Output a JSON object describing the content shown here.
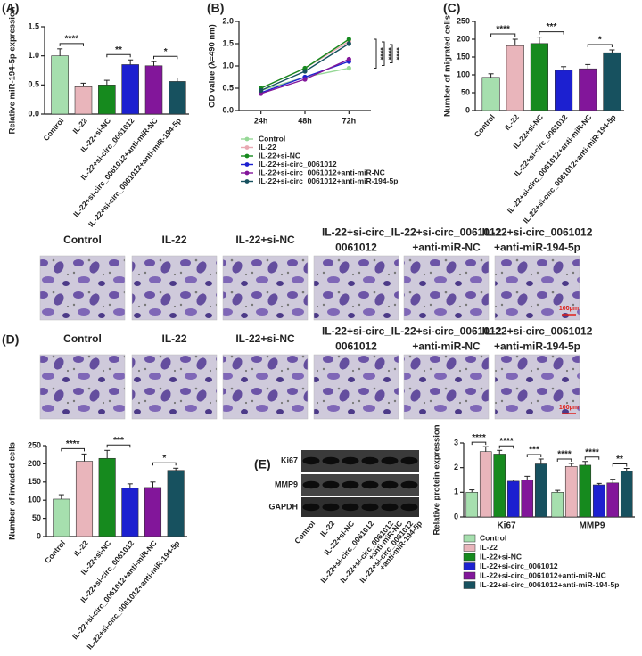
{
  "panel_labels": [
    "(A)",
    "(B)",
    "(C)",
    "(D)",
    "(E)"
  ],
  "chart_data": [
    {
      "type": "bar",
      "ylabel": "Relative miR-194-5p expression",
      "categories": [
        "Control",
        "IL-22",
        "IL-22+si-NC",
        "IL-22+si-circ_0061012",
        "IL-22+si-circ_0061012+anti-miR-NC",
        "IL-22+si-circ_0061012+anti-miR-194-5p"
      ],
      "values": [
        1.0,
        0.47,
        0.5,
        0.85,
        0.83,
        0.56
      ],
      "errors": [
        0.12,
        0.06,
        0.08,
        0.08,
        0.07,
        0.06
      ],
      "colors": [
        "#a6dfae",
        "#e9b5bb",
        "#168a1e",
        "#1c20d0",
        "#82169a",
        "#17515f"
      ],
      "ylim": [
        0,
        1.5
      ],
      "yticks": [
        {
          "value": 0,
          "label": "0.0"
        },
        0.5,
        {
          "value": 1,
          "label": "1.0"
        },
        1.5
      ],
      "annotations": [
        "****",
        "**",
        "*"
      ]
    },
    {
      "type": "line",
      "ylabel": "OD value (λ=490 nm)",
      "categories": [
        "24h",
        "48h",
        "72h"
      ],
      "series": [
        {
          "name": "Control",
          "color": "#96d896",
          "values": [
            0.45,
            0.75,
            0.95
          ]
        },
        {
          "name": "IL-22",
          "color": "#e9a8b2",
          "values": [
            0.5,
            0.95,
            1.55
          ]
        },
        {
          "name": "IL-22+si-NC",
          "color": "#168a1e",
          "values": [
            0.5,
            0.95,
            1.6
          ]
        },
        {
          "name": "IL-22+si-circ_0061012",
          "color": "#1c20d0",
          "values": [
            0.4,
            0.75,
            1.1
          ]
        },
        {
          "name": "IL-22+si-circ_0061012+anti-miR-NC",
          "color": "#82169a",
          "values": [
            0.38,
            0.7,
            1.15
          ]
        },
        {
          "name": "IL-22+si-circ_0061012+anti-miR-194-5p",
          "color": "#17515f",
          "values": [
            0.45,
            0.88,
            1.5
          ]
        }
      ],
      "ylim": [
        0,
        2
      ],
      "yticks": [
        {
          "value": 0,
          "label": "0.0"
        },
        0.5,
        {
          "value": 1,
          "label": "1.0"
        },
        1.5,
        {
          "value": 2,
          "label": "2.0"
        }
      ],
      "annotations": [
        "****",
        "****",
        "****"
      ]
    },
    {
      "type": "bar",
      "ylabel": "Number of migrated cells",
      "categories": [
        "Control",
        "IL-22",
        "IL-22+si-NC",
        "IL-22+si-circ_0061012",
        "IL-22+si-circ_0061012+anti-miR-NC",
        "IL-22+si-circ_0061012+anti-miR-194-5p"
      ],
      "values": [
        93,
        182,
        188,
        113,
        117,
        162
      ],
      "errors": [
        10,
        18,
        18,
        10,
        12,
        8
      ],
      "colors": [
        "#a6dfae",
        "#e9b5bb",
        "#168a1e",
        "#1c20d0",
        "#82169a",
        "#17515f"
      ],
      "ylim": [
        0,
        250
      ],
      "yticks": [
        0,
        50,
        100,
        150,
        200,
        250
      ],
      "annotations": [
        "****",
        "***",
        "*"
      ]
    },
    {
      "type": "bar",
      "ylabel": "Number of invaded cells",
      "categories": [
        "Control",
        "IL-22",
        "IL-22+si-NC",
        "IL-22+si-circ_0061012",
        "IL-22+si-circ_0061012+anti-miR-NC",
        "IL-22+si-circ_0061012+anti-miR-194-5p"
      ],
      "values": [
        103,
        207,
        215,
        133,
        135,
        182
      ],
      "errors": [
        12,
        20,
        22,
        12,
        15,
        6
      ],
      "colors": [
        "#a6dfae",
        "#e9b5bb",
        "#168a1e",
        "#1c20d0",
        "#82169a",
        "#17515f"
      ],
      "ylim": [
        0,
        250
      ],
      "yticks": [
        0,
        50,
        100,
        150,
        200,
        250
      ],
      "annotations": [
        "****",
        "***",
        "*"
      ]
    },
    {
      "type": "bar",
      "ylabel": "Relative protein expression",
      "categories": [
        "Ki67",
        "MMP9"
      ],
      "series": [
        {
          "name": "Control",
          "color": "#a6dfae",
          "values": [
            1.0,
            1.0
          ],
          "errors": [
            0.1,
            0.08
          ]
        },
        {
          "name": "IL-22",
          "color": "#e9b5bb",
          "values": [
            2.65,
            2.05
          ],
          "errors": [
            0.2,
            0.12
          ]
        },
        {
          "name": "IL-22+si-NC",
          "color": "#168a1e",
          "values": [
            2.55,
            2.1
          ],
          "errors": [
            0.15,
            0.15
          ]
        },
        {
          "name": "IL-22+si-circ_0061012",
          "color": "#1c20d0",
          "values": [
            1.45,
            1.3
          ],
          "errors": [
            0.05,
            0.06
          ]
        },
        {
          "name": "IL-22+si-circ_0061012+anti-miR-NC",
          "color": "#82169a",
          "values": [
            1.5,
            1.38
          ],
          "errors": [
            0.15,
            0.15
          ]
        },
        {
          "name": "IL-22+si-circ_0061012+anti-miR-194-5p",
          "color": "#17515f",
          "values": [
            2.15,
            1.85
          ],
          "errors": [
            0.2,
            0.12
          ]
        }
      ],
      "ylim": [
        0,
        3
      ],
      "yticks": [
        0,
        1,
        2,
        3
      ],
      "annotations": [
        "****",
        "****",
        "***",
        "****",
        "****",
        "**"
      ]
    }
  ],
  "migration_images": {
    "labels": [
      [
        "Control"
      ],
      [
        "IL-22"
      ],
      [
        "IL-22+si-NC"
      ],
      [
        "IL-22+si-circ_",
        "0061012"
      ],
      [
        "IL-22+si-circ_0061012",
        "+anti-miR-NC"
      ],
      [
        "IL-22+si-circ_0061012",
        "+anti-miR-194-5p"
      ]
    ],
    "scale_bar": "100μm"
  },
  "invasion_images": {
    "labels": [
      [
        "Control"
      ],
      [
        "IL-22"
      ],
      [
        "IL-22+si-NC"
      ],
      [
        "IL-22+si-circ_",
        "0061012"
      ],
      [
        "IL-22+si-circ_0061012",
        "+anti-miR-NC"
      ],
      [
        "IL-22+si-circ_0061012",
        "+anti-miR-194-5p"
      ]
    ],
    "scale_bar": "100μm"
  },
  "blot": {
    "bands": [
      "Ki67",
      "MMP9",
      "GAPDH"
    ],
    "lanes": [
      [
        "Control"
      ],
      [
        "IL-22"
      ],
      [
        "IL-22+si-NC"
      ],
      [
        "IL-22+si-circ_0061012"
      ],
      [
        "IL-22+si-circ_0061012",
        "+anti-miR-NC"
      ],
      [
        "IL-22+si-circ_0061012",
        "+anti-miR-194-5p"
      ]
    ]
  }
}
